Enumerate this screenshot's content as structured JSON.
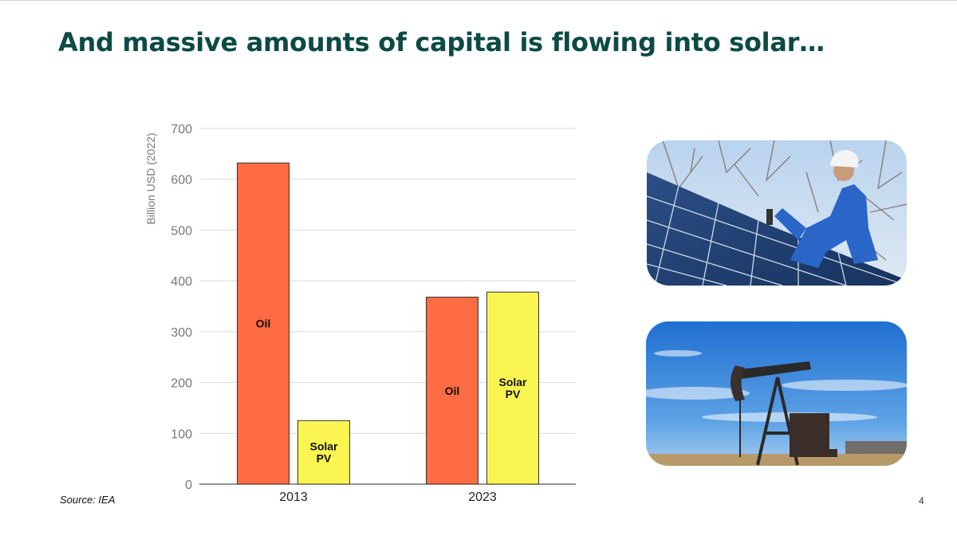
{
  "slide": {
    "title": "And massive amounts of capital is flowing into solar…",
    "source": "Source: IEA",
    "page_number": "4"
  },
  "colors": {
    "title": "#0d4a44",
    "oil": "#ff6b42",
    "solar": "#fbf552",
    "bar_stroke": "#333333",
    "grid": "#d9d9d9",
    "axis_text": "#777777"
  },
  "chart_data": {
    "type": "bar",
    "title": "",
    "xlabel": "",
    "ylabel": "Billion USD (2022)",
    "ylim": [
      0,
      700
    ],
    "yticks": [
      0,
      100,
      200,
      300,
      400,
      500,
      600,
      700
    ],
    "grid": true,
    "categories": [
      "2013",
      "2023"
    ],
    "series": [
      {
        "name": "Oil",
        "bar_label": [
          "Oil"
        ],
        "values": [
          632,
          368
        ]
      },
      {
        "name": "Solar PV",
        "bar_label": [
          "Solar",
          "PV"
        ],
        "values": [
          125,
          378
        ]
      }
    ]
  },
  "images": [
    {
      "name": "solar-installer-photo",
      "description": "worker installing solar panels"
    },
    {
      "name": "oil-pumpjack-photo",
      "description": "oil pumpjack under blue sky"
    }
  ]
}
